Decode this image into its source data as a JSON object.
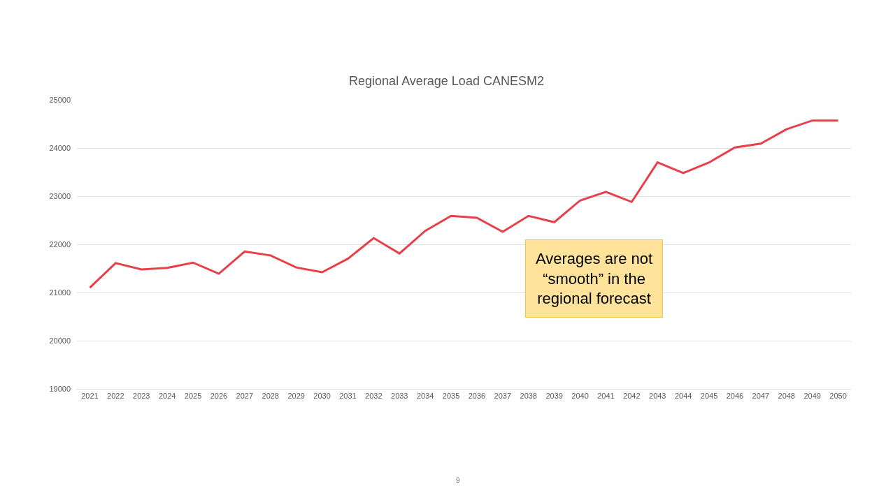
{
  "chart_data": {
    "type": "line",
    "title": "Regional Average Load CANESM2",
    "categories": [
      "2021",
      "2022",
      "2023",
      "2024",
      "2025",
      "2026",
      "2027",
      "2028",
      "2029",
      "2030",
      "2031",
      "2032",
      "2033",
      "2034",
      "2035",
      "2036",
      "2037",
      "2038",
      "2039",
      "2040",
      "2041",
      "2042",
      "2043",
      "2044",
      "2045",
      "2046",
      "2047",
      "2048",
      "2049",
      "2050"
    ],
    "series": [
      {
        "color": "#e8404a",
        "values": [
          21100,
          21610,
          21480,
          21510,
          21620,
          21390,
          21850,
          21770,
          21520,
          21420,
          21700,
          22130,
          21810,
          22280,
          22590,
          22550,
          22260,
          22590,
          22460,
          22910,
          23090,
          22880,
          23700,
          23480,
          23700,
          24010,
          24090,
          24390,
          24570,
          24570
        ]
      }
    ],
    "ylim": [
      19000,
      25000
    ],
    "yticks": [
      19000,
      20000,
      21000,
      22000,
      23000,
      24000,
      25000
    ],
    "grid": "y",
    "marker": "none",
    "line_style": "solid",
    "annotations": [
      "Averages are not\n“smooth” in the\nregional forecast",
      "9"
    ]
  }
}
